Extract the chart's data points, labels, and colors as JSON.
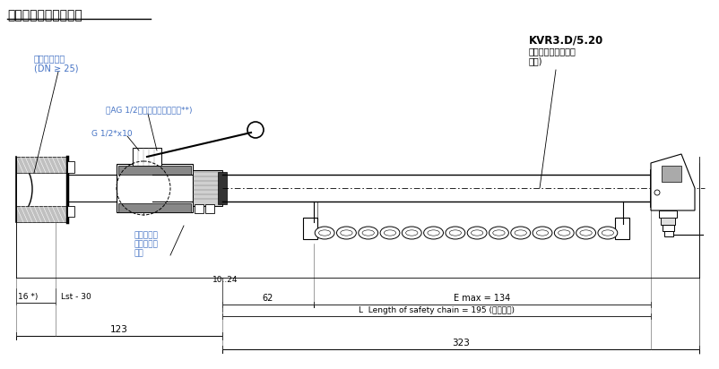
{
  "title": "传感器显示在最终位置",
  "label_pipe": "现有管道系统\n(DN ≥ 25)",
  "label_ag": "带AG 1/2的焊接六角螺纹接头**)",
  "label_g": "G 1/2*x10",
  "label_kvr": "KVR3.D/5.20",
  "label_kvr2": "完整的安全链（焊接\n连接)",
  "label_change": "改变路径以\n放松链条的\n张力",
  "label_16": "16 *)",
  "label_lst": "Lst - 30",
  "label_10_24": "10..24",
  "label_62": "62",
  "label_emax": "E max = 134",
  "label_length": "L  Length of safety chain = 195 (结束设置)",
  "label_123": "123",
  "label_323": "323",
  "bg_color": "#ffffff",
  "line_color": "#000000",
  "title_color": "#000000",
  "label_color_blue": "#4472c4",
  "label_color_black": "#000000"
}
